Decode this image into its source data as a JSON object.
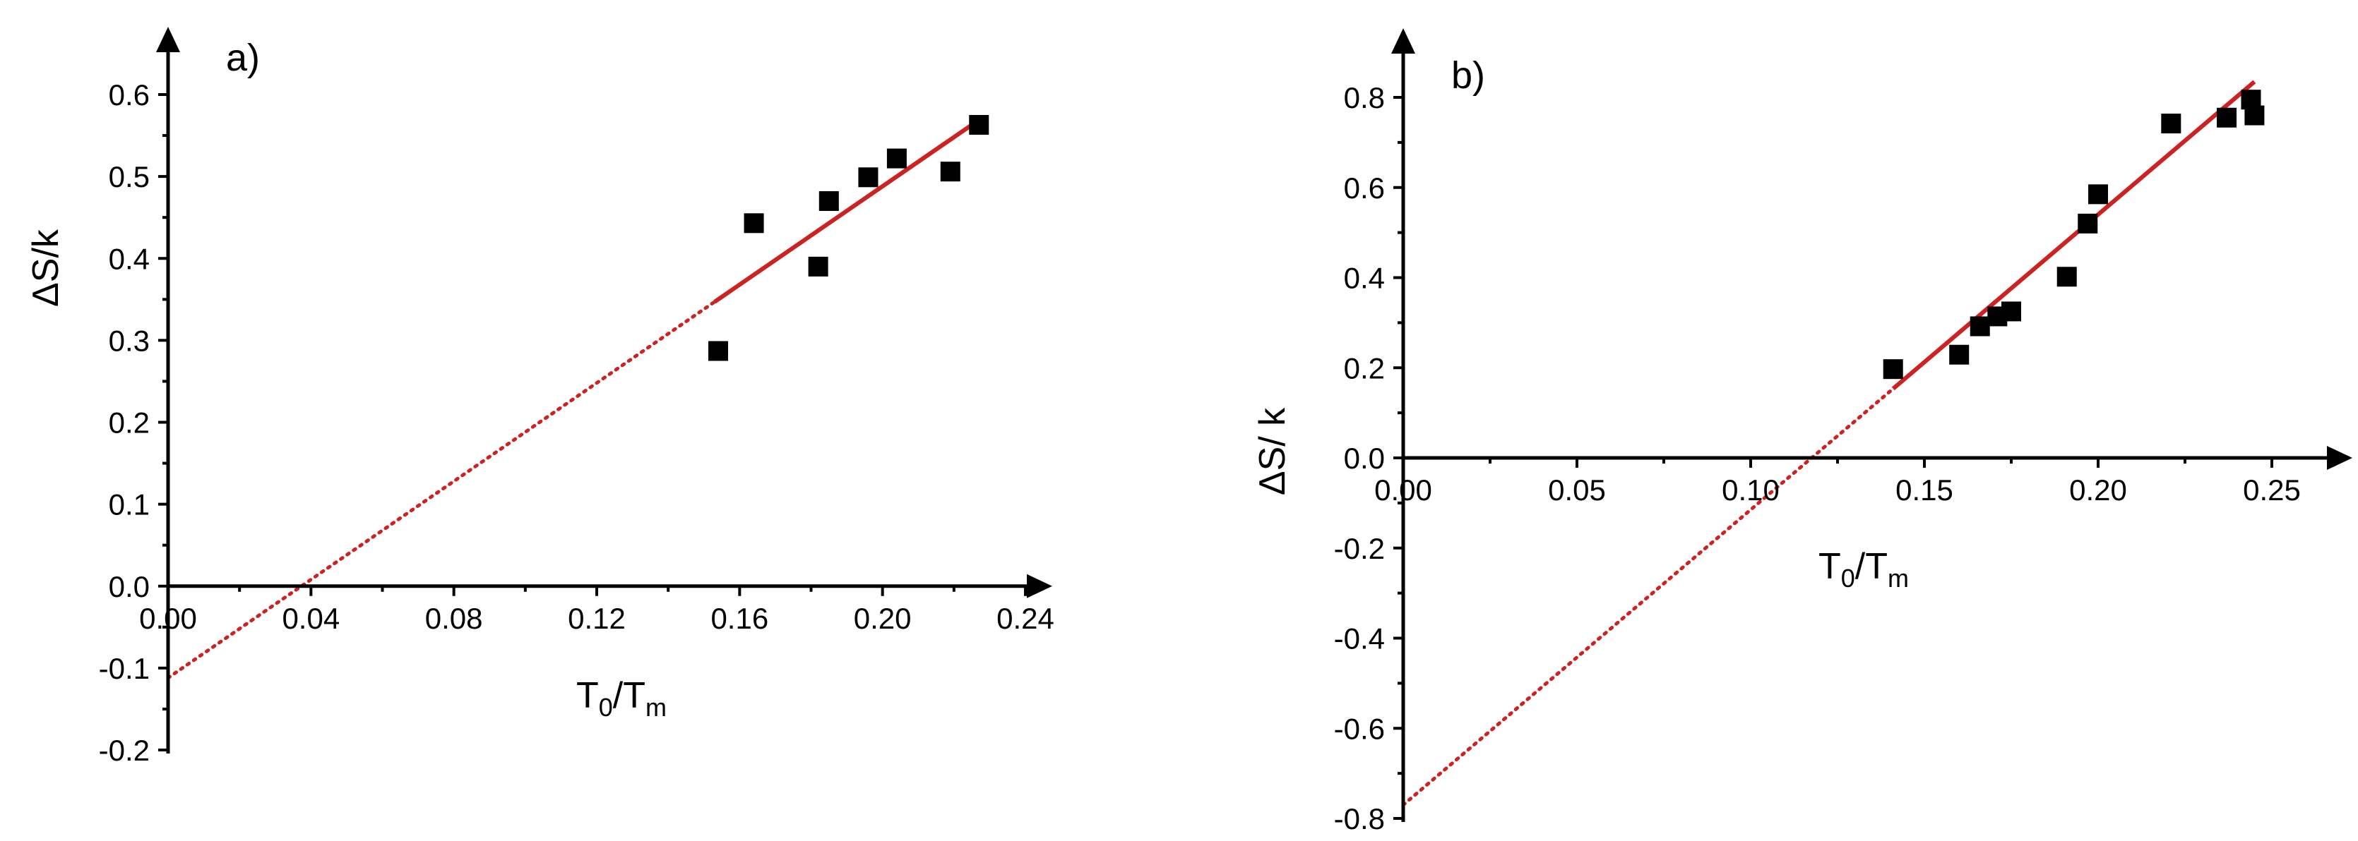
{
  "colors": {
    "fit": "#cc2222",
    "marker": "#000000",
    "axis": "#000000"
  },
  "chart_data": [
    {
      "type": "scatter",
      "panel_label": "a)",
      "xlabel": {
        "main": "T",
        "sub1": "0",
        "slash": "/T",
        "sub2": "m"
      },
      "ylabel": "ΔS/k",
      "xlim": [
        0.0,
        0.24
      ],
      "ylim": [
        -0.2,
        0.6
      ],
      "xticks": [
        "0.00",
        "0.04",
        "0.08",
        "0.12",
        "0.16",
        "0.20",
        "0.24"
      ],
      "yticks": [
        "-0.2",
        "-0.1",
        "0.0",
        "0.1",
        "0.2",
        "0.3",
        "0.4",
        "0.5",
        "0.6"
      ],
      "points": [
        {
          "x": 0.154,
          "y": 0.287
        },
        {
          "x": 0.164,
          "y": 0.443
        },
        {
          "x": 0.182,
          "y": 0.39
        },
        {
          "x": 0.185,
          "y": 0.47
        },
        {
          "x": 0.196,
          "y": 0.499
        },
        {
          "x": 0.204,
          "y": 0.522
        },
        {
          "x": 0.219,
          "y": 0.506
        },
        {
          "x": 0.227,
          "y": 0.563
        }
      ],
      "fit": {
        "slope": 3.0,
        "intercept": -0.112,
        "solid_x": [
          0.153,
          0.227
        ],
        "dotted_x": [
          0.0,
          0.153
        ]
      }
    },
    {
      "type": "scatter",
      "panel_label": "b)",
      "xlabel": {
        "main": "T",
        "sub1": "0",
        "slash": "/T",
        "sub2": "m"
      },
      "ylabel": "ΔS/ k",
      "xlim": [
        0.0,
        0.25
      ],
      "ylim": [
        -0.8,
        0.8
      ],
      "xticks": [
        "0.00",
        "0.05",
        "0.10",
        "0.15",
        "0.20",
        "0.25"
      ],
      "yticks": [
        "-0.8",
        "-0.6",
        "-0.4",
        "-0.2",
        "0.0",
        "0.2",
        "0.4",
        "0.6",
        "0.8"
      ],
      "points": [
        {
          "x": 0.141,
          "y": 0.197
        },
        {
          "x": 0.16,
          "y": 0.229
        },
        {
          "x": 0.166,
          "y": 0.292
        },
        {
          "x": 0.171,
          "y": 0.314
        },
        {
          "x": 0.175,
          "y": 0.325
        },
        {
          "x": 0.191,
          "y": 0.402
        },
        {
          "x": 0.197,
          "y": 0.52
        },
        {
          "x": 0.2,
          "y": 0.585
        },
        {
          "x": 0.221,
          "y": 0.742
        },
        {
          "x": 0.237,
          "y": 0.755
        },
        {
          "x": 0.244,
          "y": 0.795
        },
        {
          "x": 0.245,
          "y": 0.76
        }
      ],
      "fit": {
        "slope": 6.55,
        "intercept": -0.77,
        "solid_x": [
          0.141,
          0.245
        ],
        "dotted_x": [
          0.0,
          0.141
        ]
      }
    }
  ]
}
